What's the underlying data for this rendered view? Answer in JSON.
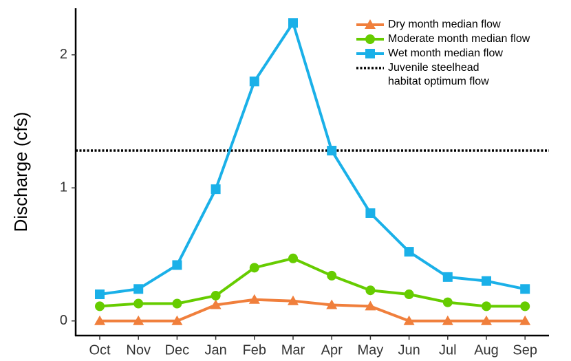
{
  "chart_data": {
    "type": "line",
    "y_label": "Discharge (cfs)",
    "categories": [
      "Oct",
      "Nov",
      "Dec",
      "Jan",
      "Feb",
      "Mar",
      "Apr",
      "May",
      "Jun",
      "Jul",
      "Aug",
      "Sep"
    ],
    "series": [
      {
        "name": "Dry month median flow",
        "color": "#f07f3c",
        "marker": "triangle",
        "values": [
          0,
          0,
          0,
          0.12,
          0.16,
          0.15,
          0.12,
          0.11,
          0,
          0,
          0,
          0
        ]
      },
      {
        "name": "Moderate month median flow",
        "color": "#66cc00",
        "marker": "circle",
        "values": [
          0.11,
          0.13,
          0.13,
          0.19,
          0.4,
          0.47,
          0.34,
          0.23,
          0.2,
          0.14,
          0.11,
          0.11
        ]
      },
      {
        "name": "Wet month median flow",
        "color": "#1ab0e8",
        "marker": "square",
        "values": [
          0.2,
          0.24,
          0.42,
          0.99,
          1.8,
          2.24,
          1.28,
          0.81,
          0.52,
          0.33,
          0.3,
          0.24
        ]
      }
    ],
    "reference_line": {
      "label_lines": [
        "Juvenile steelhead",
        "habitat optimum flow"
      ],
      "value": 1.28,
      "color": "#000000"
    },
    "ylim": [
      -0.11,
      2.35
    ],
    "yticks": [
      0,
      1,
      2
    ],
    "grid": false,
    "legend": "top-right"
  }
}
